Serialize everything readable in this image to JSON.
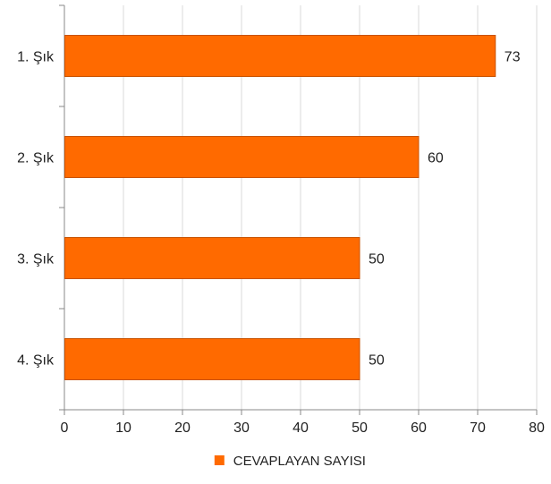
{
  "chart_data": {
    "type": "bar",
    "orientation": "horizontal",
    "categories": [
      "1. Şık",
      "2. Şık",
      "3. Şık",
      "4. Şık"
    ],
    "series": [
      {
        "name": "CEVAPLAYAN SAYISI",
        "values": [
          73,
          60,
          50,
          50
        ],
        "color": "#ff6a00"
      }
    ],
    "x_ticks": [
      "0",
      "10",
      "20",
      "30",
      "40",
      "50",
      "60",
      "70",
      "80"
    ],
    "xlim": [
      0,
      80
    ],
    "grid": true,
    "data_labels": true,
    "legend_position": "bottom-center",
    "colors": {
      "bar_fill": "#ff6a00",
      "bar_stroke": "#c85200",
      "grid": "#d9d9d9",
      "axis": "#888888"
    }
  }
}
